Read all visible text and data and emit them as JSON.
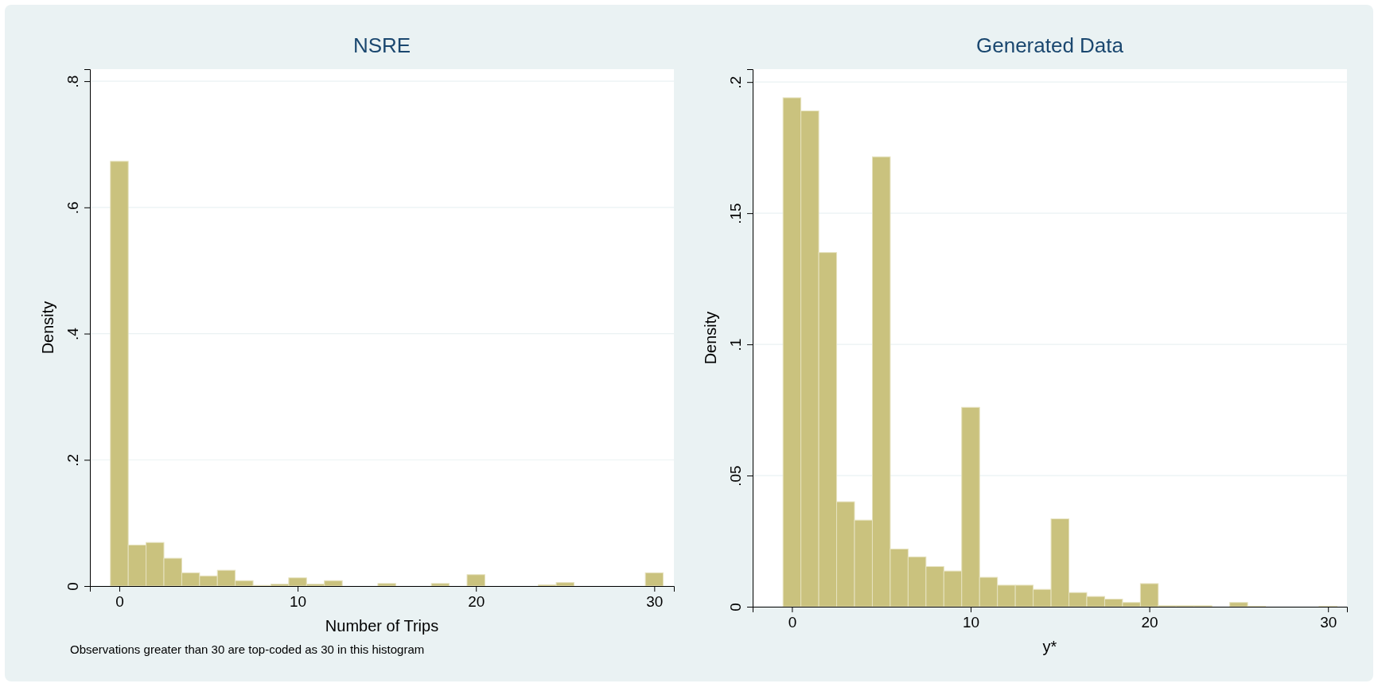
{
  "chart_data": [
    {
      "type": "histogram",
      "title": "NSRE",
      "xlabel": "Number of Trips",
      "ylabel": "Density",
      "color": "#cac27e",
      "bins": [
        -0.5,
        0.5,
        1.5,
        2.5,
        3.5,
        4.5,
        5.5,
        6.5,
        7.5,
        8.5,
        9.5,
        10.5,
        11.5,
        12.5,
        13.5,
        14.5,
        15.5,
        16.5,
        17.5,
        18.5,
        19.5,
        20.5,
        21.5,
        22.5,
        23.5,
        24.5,
        25.5,
        26.5,
        27.5,
        28.5,
        29.5,
        30.5
      ],
      "values": [
        0.673,
        0.065,
        0.069,
        0.044,
        0.021,
        0.016,
        0.025,
        0.0085,
        0.001,
        0.003,
        0.013,
        0.003,
        0.0085,
        0,
        0,
        0.004,
        0,
        0,
        0.004,
        0,
        0.018,
        0,
        0,
        0,
        0.002,
        0.0055,
        0,
        0,
        0,
        0,
        0.021
      ],
      "xlim": [
        -1.65,
        31.1
      ],
      "ylim": [
        0,
        0.819
      ],
      "xticks": [
        0,
        10,
        20,
        30
      ],
      "yticks": [
        0,
        {
          "value": 0.2,
          "label": ".2"
        },
        {
          "value": 0.4,
          "label": ".4"
        },
        {
          "value": 0.6,
          "label": ".6"
        },
        {
          "value": 0.8,
          "label": ".8"
        }
      ],
      "grid": "y",
      "annotations": [
        "Observations greater than 30 are top-coded as 30 in this histogram"
      ]
    },
    {
      "type": "histogram",
      "title": "Generated Data",
      "xlabel": "y*",
      "ylabel": "Density",
      "color": "#cac27e",
      "bins": [
        -0.5,
        0.5,
        1.5,
        2.5,
        3.5,
        4.5,
        5.5,
        6.5,
        7.5,
        8.5,
        9.5,
        10.5,
        11.5,
        12.5,
        13.5,
        14.5,
        15.5,
        16.5,
        17.5,
        18.5,
        19.5,
        20.5,
        21.5,
        22.5,
        23.5,
        24.5,
        25.5,
        26.5,
        27.5,
        28.5,
        29.5,
        30.5
      ],
      "values": [
        0.194,
        0.189,
        0.135,
        0.04,
        0.033,
        0.1715,
        0.022,
        0.019,
        0.0153,
        0.0136,
        0.076,
        0.0112,
        0.0082,
        0.0082,
        0.0066,
        0.0335,
        0.0054,
        0.0039,
        0.0029,
        0.0016,
        0.0088,
        0.0004,
        0.0004,
        0.0004,
        0,
        0.0016,
        0.0002,
        0,
        0,
        0,
        0.0002
      ],
      "xlim": [
        -2.2,
        31.06
      ],
      "ylim": [
        0,
        0.2049
      ],
      "xticks": [
        0,
        10,
        20,
        30
      ],
      "yticks": [
        0,
        {
          "value": 0.05,
          "label": ".05"
        },
        {
          "value": 0.1,
          "label": ".1"
        },
        {
          "value": 0.15,
          "label": ".15"
        },
        {
          "value": 0.2,
          "label": ".2"
        }
      ],
      "grid": "y"
    }
  ]
}
